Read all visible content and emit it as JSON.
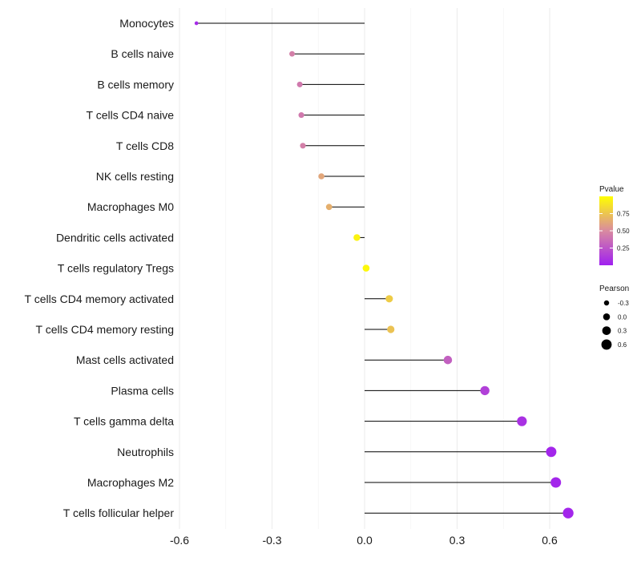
{
  "chart_data": {
    "type": "lollipop",
    "title": "",
    "xlabel": "",
    "ylabel": "",
    "xlim": [
      -0.6,
      0.7
    ],
    "x_ticks": [
      -0.6,
      -0.3,
      0.0,
      0.3,
      0.6
    ],
    "x_tick_labels": [
      "-0.6",
      "-0.3",
      "0.0",
      "0.3",
      "0.6"
    ],
    "grid": true,
    "categories": [
      "Monocytes",
      "B cells naive",
      "B cells memory",
      "T cells CD4 naive",
      "T cells CD8",
      "NK cells resting",
      "Macrophages M0",
      "Dendritic cells activated",
      "T cells regulatory  Tregs",
      "T cells CD4 memory activated",
      "T cells CD4 memory resting",
      "Mast cells activated",
      "Plasma cells",
      "T cells gamma delta",
      "Neutrophils",
      "Macrophages M2",
      "T cells follicular helper"
    ],
    "values": [
      -0.545,
      -0.235,
      -0.21,
      -0.205,
      -0.2,
      -0.14,
      -0.115,
      -0.025,
      0.005,
      0.08,
      0.085,
      0.27,
      0.39,
      0.51,
      0.605,
      0.62,
      0.66
    ],
    "pvalues": [
      0.05,
      0.45,
      0.42,
      0.42,
      0.45,
      0.62,
      0.66,
      0.95,
      0.97,
      0.78,
      0.74,
      0.3,
      0.15,
      0.08,
      0.03,
      0.03,
      0.03
    ],
    "color_legend": {
      "title": "Pvalue",
      "ticks": [
        0.75,
        0.5,
        0.25
      ],
      "tick_labels": [
        "0.75",
        "0.50",
        "0.25"
      ],
      "range": [
        0.0,
        1.0
      ],
      "low_color": "#a020f0",
      "mid_color": "#d98aa0",
      "high_color": "#ffff00"
    },
    "size_legend": {
      "title": "Pearson",
      "values": [
        -0.3,
        0.0,
        0.3,
        0.6
      ],
      "labels": [
        "-0.3",
        "0.0",
        "0.3",
        "0.6"
      ]
    }
  }
}
